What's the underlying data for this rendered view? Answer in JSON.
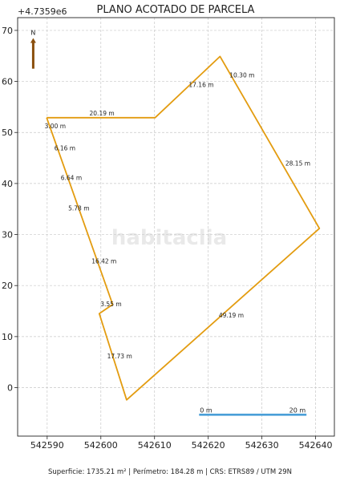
{
  "chart_data": {
    "type": "line",
    "title": "PLANO ACOTADO DE PARCELA",
    "y_offset_label": "+4.7359e6",
    "xlim": [
      542584.5,
      542643.5
    ],
    "ylim": [
      -9.5,
      72.5
    ],
    "x_ticks": [
      542590,
      542600,
      542610,
      542620,
      542630,
      542640
    ],
    "y_ticks": [
      0,
      10,
      20,
      30,
      40,
      50,
      60,
      70
    ],
    "grid": true,
    "polygon": {
      "color": "#e39c10",
      "x": [
        542589.9,
        542610.1,
        542622.2,
        542640.7,
        542604.8,
        542599.7,
        542602.2,
        542589.9
      ],
      "y": [
        52.9,
        52.9,
        64.9,
        31.2,
        -2.4,
        14.5,
        16.3,
        52.9
      ]
    },
    "segment_labels": [
      {
        "text": "20.19 m",
        "x": 542600.2,
        "y": 53.8
      },
      {
        "text": "17.16 m",
        "x": 542618.7,
        "y": 59.4
      },
      {
        "text": "10.30 m",
        "x": 542626.3,
        "y": 61.3
      },
      {
        "text": "28.15 m",
        "x": 542636.7,
        "y": 44.0
      },
      {
        "text": "49.19 m",
        "x": 542624.3,
        "y": 14.2
      },
      {
        "text": "17.73 m",
        "x": 542603.5,
        "y": 6.2
      },
      {
        "text": "3.55 m",
        "x": 542601.9,
        "y": 16.4
      },
      {
        "text": "16.42 m",
        "x": 542600.6,
        "y": 24.8
      },
      {
        "text": "5.78 m",
        "x": 542595.9,
        "y": 35.2
      },
      {
        "text": "6.64 m",
        "x": 542594.5,
        "y": 41.2
      },
      {
        "text": "6.16 m",
        "x": 542593.3,
        "y": 47.0
      },
      {
        "text": "3.00 m",
        "x": 542591.5,
        "y": 51.3
      }
    ],
    "north_arrow": {
      "label": "N",
      "x": 542587.4,
      "y_base": 62.5,
      "y_tip": 68.5,
      "color": "#8a4f0d"
    },
    "scale_bar": {
      "x_start": 542618.3,
      "x_end": 542638.3,
      "y": -5.3,
      "start_label": "0 m",
      "end_label": "20 m",
      "color": "#4a9fd8"
    },
    "watermark": "habitaclia"
  },
  "footer": "Superficie: 1735.21 m²   |   Perímetro: 184.28 m   |   CRS: ETRS89 / UTM 29N"
}
